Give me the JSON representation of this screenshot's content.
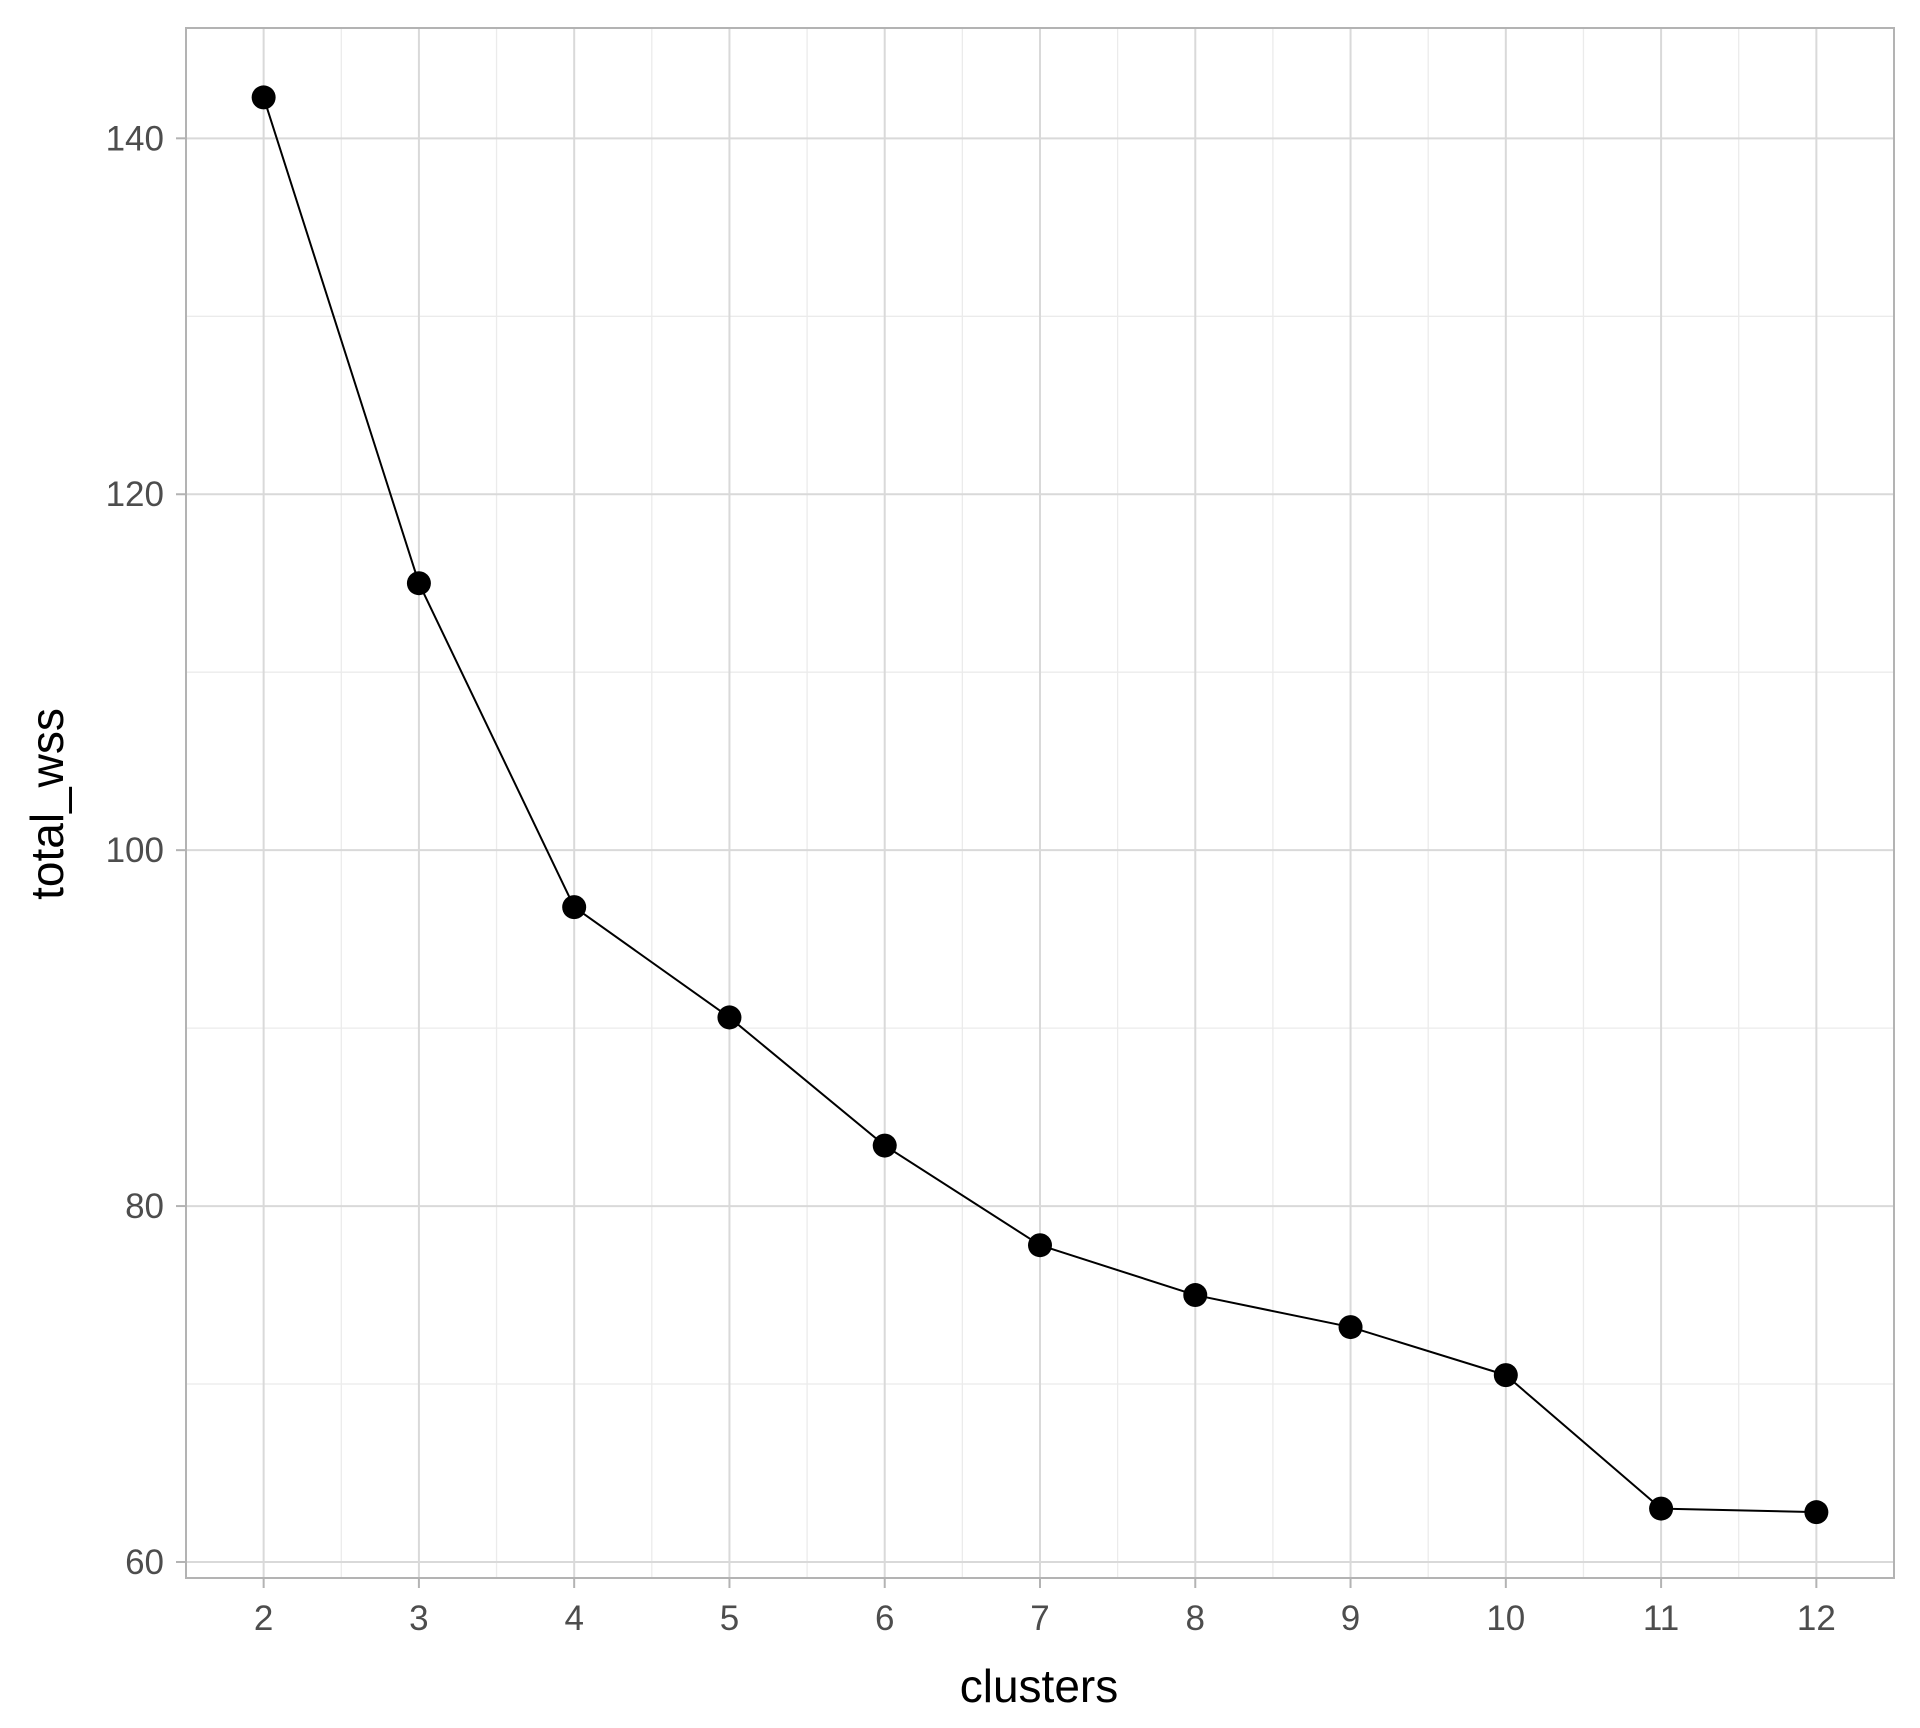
{
  "chart_data": {
    "type": "line",
    "title": "",
    "xlabel": "clusters",
    "ylabel": "total_wss",
    "x_ticks": [
      "2",
      "3",
      "4",
      "5",
      "6",
      "7",
      "8",
      "9",
      "10",
      "11",
      "12"
    ],
    "y_ticks": [
      "60",
      "80",
      "100",
      "120",
      "140"
    ],
    "xlim": [
      1.5,
      12.5
    ],
    "ylim": [
      59.1,
      146.2
    ],
    "grid": true,
    "legend": "none",
    "series": [
      {
        "x": [
          2,
          3,
          4,
          5,
          6,
          7,
          8,
          9,
          10,
          11,
          12
        ],
        "y": [
          142.3,
          115.0,
          96.8,
          90.6,
          83.4,
          77.8,
          75.0,
          73.2,
          70.5,
          63.0,
          62.8
        ],
        "markers": true
      }
    ],
    "colors": {
      "line": "#000000",
      "point": "#000000",
      "major_grid": "#d9d9d9",
      "minor_grid": "#ebebeb",
      "panel_border": "#b3b3b3",
      "tick_label": "#4d4d4d"
    }
  }
}
